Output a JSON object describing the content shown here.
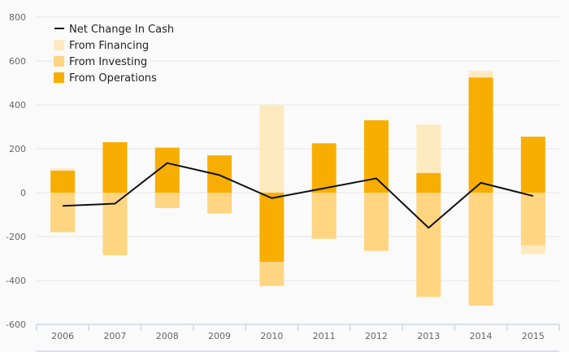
{
  "chart_data": {
    "type": "bar",
    "categories": [
      "2006",
      "2007",
      "2008",
      "2009",
      "2010",
      "2011",
      "2012",
      "2013",
      "2014",
      "2015"
    ],
    "series": [
      {
        "name": "From Financing",
        "kind": "bar",
        "color": "#ffe9bf",
        "values": [
          10,
          0,
          0,
          0,
          400,
          0,
          0,
          220,
          30,
          -40
        ]
      },
      {
        "name": "From Investing",
        "kind": "bar",
        "color": "#ffd582",
        "values": [
          -180,
          -285,
          -70,
          -95,
          -110,
          -210,
          -265,
          -475,
          -515,
          -240
        ]
      },
      {
        "name": "From Operations",
        "kind": "bar",
        "color": "#f8ae00",
        "values": [
          100,
          230,
          205,
          170,
          -315,
          225,
          330,
          90,
          525,
          255
        ]
      },
      {
        "name": "Net Change In Cash",
        "kind": "line",
        "color": "#111111",
        "values": [
          -60,
          -50,
          135,
          80,
          -25,
          20,
          65,
          -160,
          45,
          -15
        ]
      }
    ],
    "legend": [
      "Net Change In Cash",
      "From Financing",
      "From Investing",
      "From Operations"
    ],
    "yticks": [
      800,
      600,
      400,
      200,
      0,
      -200,
      -400,
      -600
    ],
    "ylim": [
      -600,
      800
    ],
    "grid": true,
    "legend_position": "top-left"
  }
}
